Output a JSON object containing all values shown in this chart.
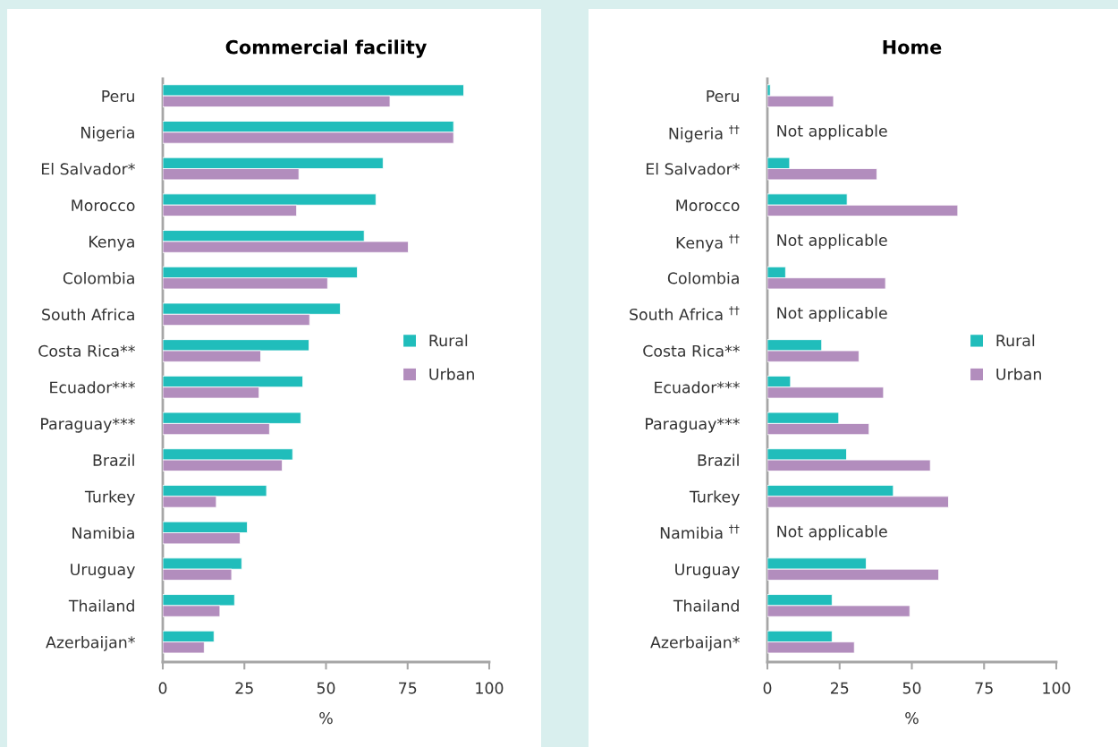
{
  "chart_data": [
    {
      "type": "bar",
      "orientation": "horizontal",
      "title": "Commercial facility",
      "xlabel": "%",
      "categories": [
        "Peru",
        "Nigeria",
        "El Salvador*",
        "Morocco",
        "Kenya",
        "Colombia",
        "South Africa",
        "Costa Rica**",
        "Ecuador***",
        "Paraguay***",
        "Brazil",
        "Turkey",
        "Namibia",
        "Uruguay",
        "Thailand",
        "Azerbaijan*"
      ],
      "series": [
        {
          "name": "Rural",
          "color": "#20bdbb",
          "values": [
            92.2,
            89.1,
            67.5,
            65.3,
            61.7,
            59.6,
            54.4,
            44.8,
            42.9,
            42.3,
            39.8,
            31.8,
            25.9,
            24.2,
            22.0,
            15.7
          ]
        },
        {
          "name": "Urban",
          "color": "#b28dbd",
          "values": [
            69.6,
            89.1,
            41.7,
            41.0,
            75.2,
            50.5,
            45.0,
            30.0,
            29.5,
            32.7,
            36.6,
            16.4,
            23.7,
            21.1,
            17.5,
            12.7
          ]
        }
      ],
      "xlim": [
        0,
        100
      ],
      "xticks": [
        0,
        25,
        50,
        75,
        100
      ],
      "grid": false,
      "legend": "right"
    },
    {
      "type": "bar",
      "orientation": "horizontal",
      "title": "Home",
      "xlabel": "%",
      "categories": [
        "Peru",
        "Nigeria $^{††}$",
        "El Salvador*",
        "Morocco",
        "Kenya $^{††}$",
        "Colombia",
        "South Africa $^{††}$",
        "Costa Rica**",
        "Ecuador***",
        "Paraguay***",
        "Brazil",
        "Turkey",
        "Namibia $^{††}$",
        "Uruguay",
        "Thailand",
        "Azerbaijan*"
      ],
      "series": [
        {
          "name": "Rural",
          "color": "#20bdbb",
          "values": [
            1.0,
            null,
            7.7,
            27.6,
            null,
            6.3,
            null,
            18.8,
            8.0,
            24.7,
            27.4,
            43.6,
            null,
            34.2,
            22.4,
            22.4
          ]
        },
        {
          "name": "Urban",
          "color": "#b28dbd",
          "values": [
            22.9,
            null,
            37.9,
            65.9,
            null,
            40.9,
            null,
            31.7,
            40.2,
            35.2,
            56.4,
            62.7,
            null,
            59.3,
            49.3,
            30.1
          ]
        }
      ],
      "annotations": [
        "Not applicable",
        "Not applicable",
        "Not applicable",
        "Not applicable"
      ],
      "xlim": [
        0,
        100
      ],
      "xticks": [
        0,
        25,
        50,
        75,
        100
      ],
      "grid": false,
      "legend": "right"
    }
  ]
}
